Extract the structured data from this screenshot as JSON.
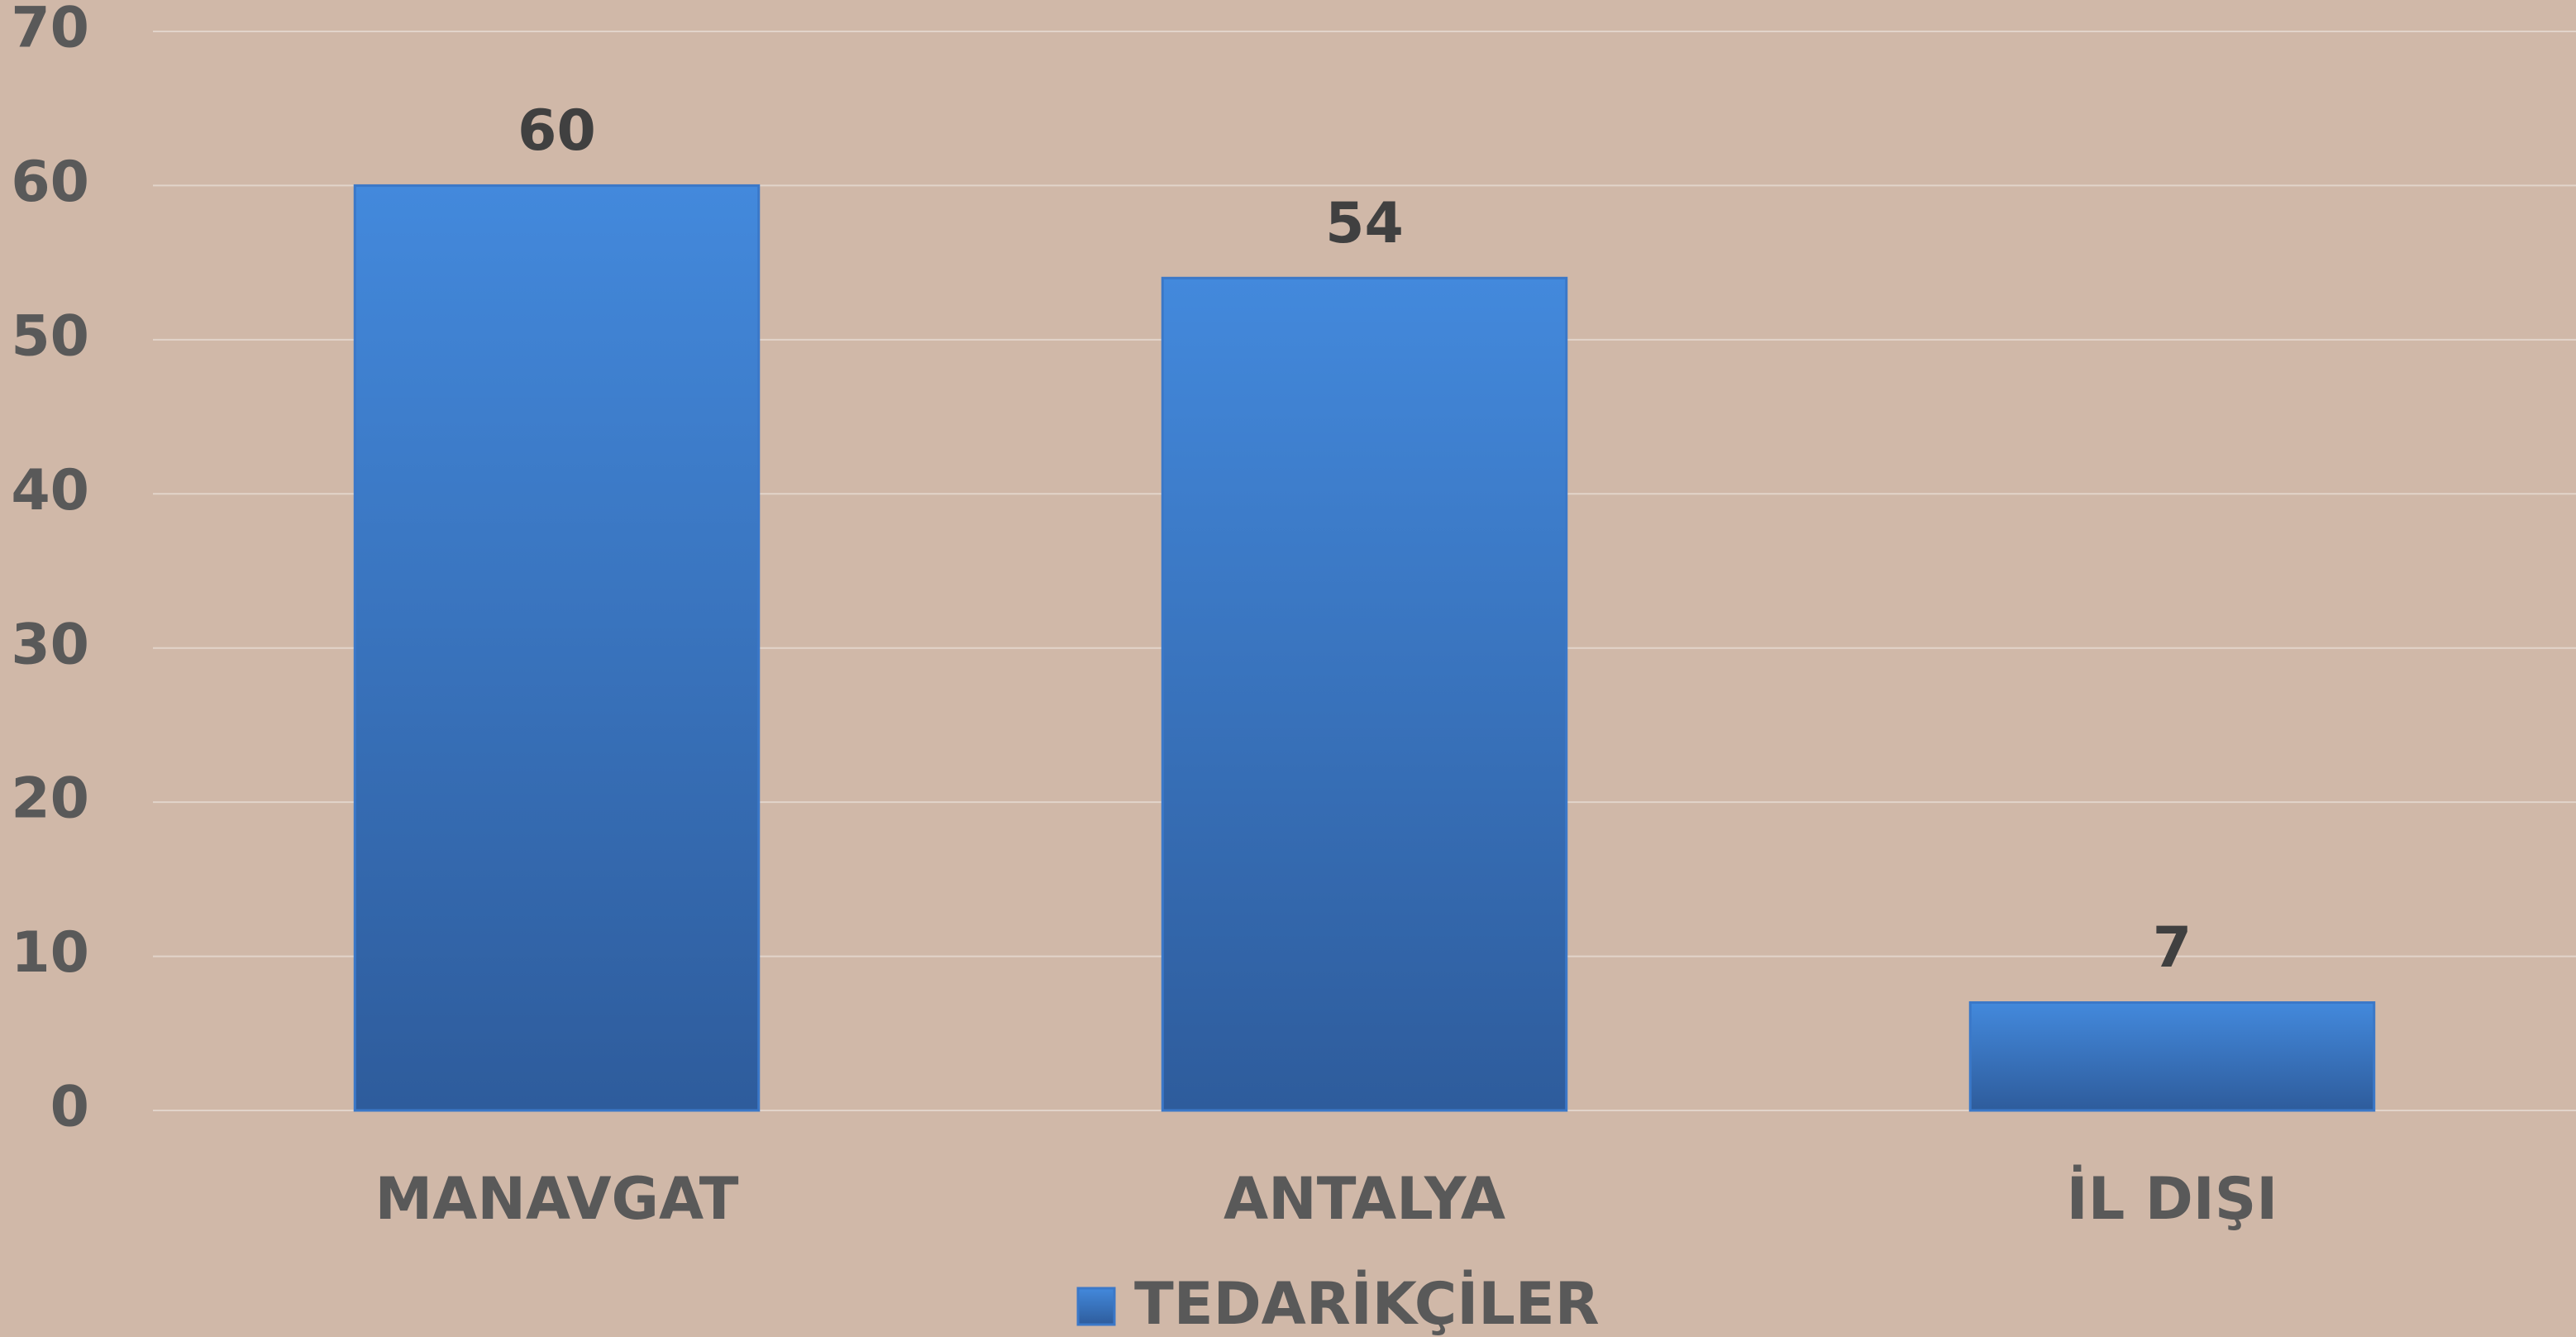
{
  "chart_data": {
    "type": "bar",
    "categories": [
      "MANAVGAT",
      "ANTALYA",
      "İL DIŞI"
    ],
    "series": [
      {
        "name": "TEDARİKÇİLER",
        "color": "#3b78c8",
        "values": [
          60,
          54,
          7
        ]
      }
    ],
    "ylim": [
      0,
      70
    ],
    "yticks": [
      0,
      10,
      20,
      30,
      40,
      50,
      60,
      70
    ],
    "grid": true,
    "legend": "bottom"
  }
}
